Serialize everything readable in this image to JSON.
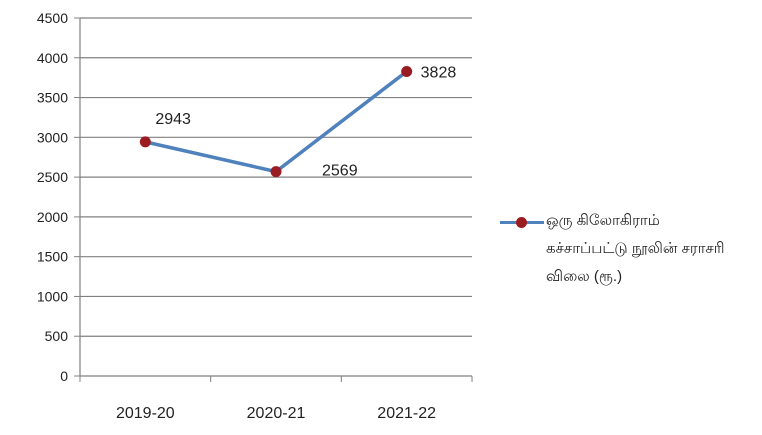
{
  "chart_data": {
    "type": "line",
    "categories": [
      "2019-20",
      "2020-21",
      "2021-22"
    ],
    "series": [
      {
        "name": "ஒரு கிலோகிராம் கச்சாப்பட்டு நூலின் சராசரி விலை (ரூ.)",
        "values": [
          2943,
          2569,
          3828
        ]
      }
    ],
    "data_labels": [
      "2943",
      "2569",
      "3828"
    ],
    "yticks": [
      "0",
      "500",
      "1000",
      "1500",
      "2000",
      "2500",
      "3000",
      "3500",
      "4000",
      "4500"
    ],
    "ylim": [
      0,
      4500
    ],
    "grid": "horizontal",
    "legend_position": "right",
    "colors": {
      "line": "#4f81bd",
      "marker": "#9b1b22",
      "grid": "#808080",
      "axis": "#808080"
    }
  }
}
